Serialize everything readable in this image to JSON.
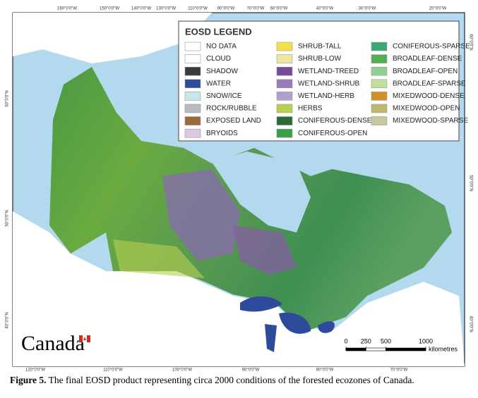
{
  "legend": {
    "title": "EOSD LEGEND",
    "columns": [
      [
        {
          "label": "NO DATA",
          "color": "#ffffff"
        },
        {
          "label": "CLOUD",
          "color": "#ffffff"
        },
        {
          "label": "SHADOW",
          "color": "#3a3a3a"
        },
        {
          "label": "WATER",
          "color": "#2e4a9a"
        },
        {
          "label": "SNOW/ICE",
          "color": "#c8e6ea"
        },
        {
          "label": "ROCK/RUBBLE",
          "color": "#b8bcc0"
        },
        {
          "label": "EXPOSED LAND",
          "color": "#9a6a3c"
        },
        {
          "label": "BRYOIDS",
          "color": "#dcc8e0"
        }
      ],
      [
        {
          "label": "SHRUB-TALL",
          "color": "#f5e04a"
        },
        {
          "label": "SHRUB-LOW",
          "color": "#f0e6a0"
        },
        {
          "label": "WETLAND-TREED",
          "color": "#7a4a9a"
        },
        {
          "label": "WETLAND-SHRUB",
          "color": "#9a7ab8"
        },
        {
          "label": "WETLAND-HERB",
          "color": "#b0a0cc"
        },
        {
          "label": "HERBS",
          "color": "#b8d050"
        },
        {
          "label": "CONIFEROUS-DENSE",
          "color": "#2a6a34"
        },
        {
          "label": "CONIFEROUS-OPEN",
          "color": "#3aa048"
        }
      ],
      [
        {
          "label": "CONIFEROUS-SPARSE",
          "color": "#3aa878"
        },
        {
          "label": "BROADLEAF-DENSE",
          "color": "#50b050"
        },
        {
          "label": "BROADLEAF-OPEN",
          "color": "#90d090"
        },
        {
          "label": "BROADLEAF-SPARSE",
          "color": "#c0e0a0"
        },
        {
          "label": "MIXEDWOOD-DENSE",
          "color": "#d0902a"
        },
        {
          "label": "MIXEDWOOD-OPEN",
          "color": "#c0b870"
        },
        {
          "label": "MIXEDWOOD-SPARSE",
          "color": "#c8c8a0"
        }
      ]
    ]
  },
  "graticule": {
    "top": [
      "160°0'0\"W",
      "150°0'0\"W",
      "140°0'0\"W",
      "130°0'0\"W",
      "110°0'0\"W",
      "90°0'0\"W",
      "70°0'0\"W",
      "60°0'0\"W",
      "40°0'0\"W",
      "30°0'0\"W",
      "20°0'0\"W"
    ],
    "bottom": [
      "120°0'0\"W",
      "110°0'0\"W",
      "100°0'0\"W",
      "90°0'0\"W",
      "80°0'0\"W",
      "70°0'0\"W"
    ],
    "left": [
      "60°0'0\"N",
      "50°0'0\"N",
      "40°0'0\"N"
    ],
    "right": [
      "60°0'0\"N",
      "50°0'0\"N",
      "40°0'0\"N"
    ]
  },
  "scale": {
    "ticks": [
      0,
      250,
      500,
      1000
    ],
    "unit": "kilometres"
  },
  "wordmark": "Canada",
  "caption": {
    "label": "Figure 5.",
    "text": "The final EOSD product representing circa 2000 conditions of the forested ecozones of Canada."
  }
}
